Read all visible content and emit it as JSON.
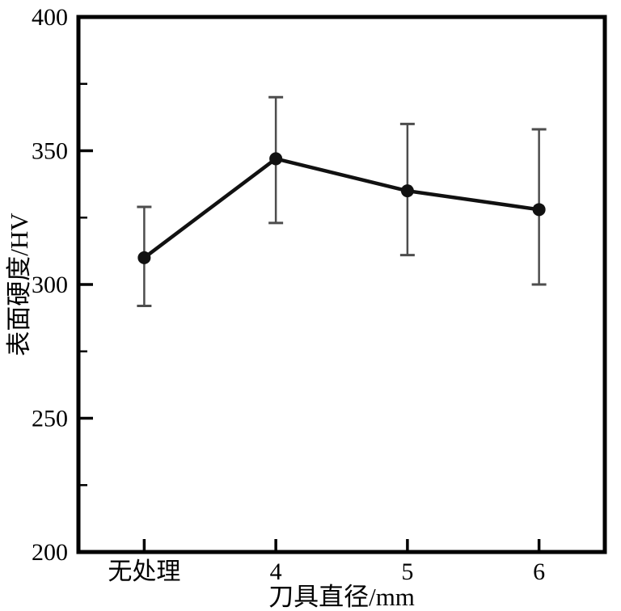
{
  "figure": {
    "background": "#ffffff"
  },
  "chart_data": {
    "type": "line",
    "title": "",
    "xlabel": "刀具直径/mm",
    "ylabel": "表面硬度/HV",
    "categories": [
      "无处理",
      "4",
      "5",
      "6"
    ],
    "series": [
      {
        "name": "表面硬度",
        "values": [
          310,
          347,
          335,
          328
        ],
        "error_upper": [
          329,
          370,
          360,
          358
        ],
        "error_lower": [
          292,
          323,
          311,
          300
        ]
      }
    ],
    "ylim": [
      200,
      400
    ],
    "yticks_major": [
      200,
      250,
      300,
      350,
      400
    ],
    "yticks_minor": [
      225,
      275,
      325,
      375
    ],
    "grid": false,
    "legend": false,
    "marker": "circle",
    "colors": {
      "line": "#111111",
      "marker": "#111111",
      "error_bar": "#4d4d4d",
      "axis": "#000000",
      "text": "#000000"
    }
  }
}
